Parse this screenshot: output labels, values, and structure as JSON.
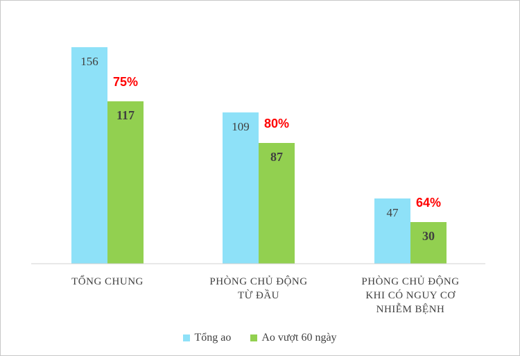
{
  "colors": {
    "series_tong": "#8ee1f8",
    "series_ao60": "#92d050",
    "percent": "#ff0000",
    "axis": "#d0d0d0"
  },
  "chart_data": {
    "type": "bar",
    "categories": [
      [
        "TỔNG CHUNG"
      ],
      [
        "PHÒNG CHỦ ĐỘNG",
        "TỪ ĐẦU"
      ],
      [
        "PHÒNG CHỦ ĐỘNG",
        "KHI CÓ NGUY CƠ",
        "NHIỄM BỆNH"
      ]
    ],
    "series": [
      {
        "name": "Tổng ao",
        "values": [
          156,
          109,
          47
        ]
      },
      {
        "name": "Ao vượt 60 ngày",
        "values": [
          117,
          87,
          30
        ]
      }
    ],
    "annotations": [
      "75%",
      "80%",
      "64%"
    ],
    "ylim": [
      0,
      160
    ],
    "grid": false,
    "legend": "bottom"
  },
  "legend": {
    "items": [
      "Tổng ao",
      "Ao vượt 60 ngày"
    ]
  }
}
